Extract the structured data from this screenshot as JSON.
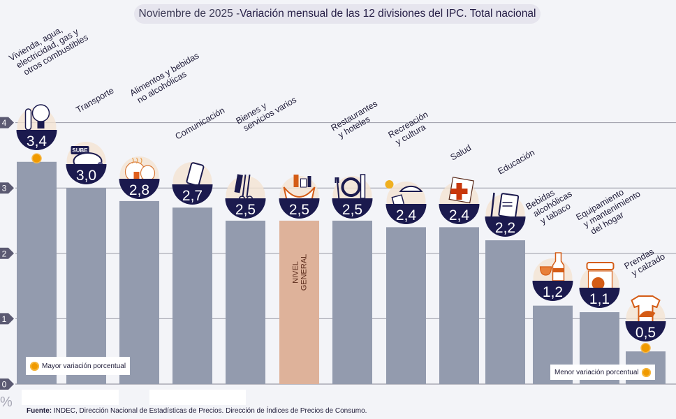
{
  "title": {
    "prefix": "Noviembre de 2025 - ",
    "main": "Variación mensual de las 12 divisiones del IPC. Total nacional"
  },
  "colors": {
    "bar": "#939bae",
    "general_bar": "#deb29a",
    "badge": "#1b1a4e",
    "highlight_dot": "#f09a00",
    "grid": "#9a9aa6",
    "axis_marker": "#5b5a72"
  },
  "chart_data": {
    "type": "bar",
    "title": "Noviembre de 2025 - Variación mensual de las 12 divisiones del IPC. Total nacional",
    "xlabel": "",
    "ylabel": "%",
    "ylim": [
      0,
      4
    ],
    "yticks": [
      "0",
      "1",
      "2",
      "3",
      "4"
    ],
    "grid": true,
    "categories": [
      "Vivienda, agua, electricidad, gas y otros combustibles",
      "Transporte",
      "Alimentos y bebidas no alcohólicas",
      "Comunicación",
      "Bienes y servicios varios",
      "NIVEL GENERAL",
      "Restaurantes y hoteles",
      "Recreación y cultura",
      "Salud",
      "Educación",
      "Bebidas alcohólicas y tabaco",
      "Equipamiento y mantenimiento del hogar",
      "Prendas y calzado"
    ],
    "values": [
      3.4,
      3.0,
      2.8,
      2.7,
      2.5,
      2.5,
      2.5,
      2.4,
      2.4,
      2.2,
      1.2,
      1.1,
      0.5
    ],
    "value_labels": [
      "3,4",
      "3,0",
      "2,8",
      "2,7",
      "2,5",
      "2,5",
      "2,5",
      "2,4",
      "2,4",
      "2,2",
      "1,2",
      "1,1",
      "0,5"
    ],
    "label_lines": [
      [
        "Vivienda, agua,",
        "electricidad, gas y",
        "otros combustibles"
      ],
      [
        "Transporte"
      ],
      [
        "Alimentos y bebidas",
        "no alcohólicas"
      ],
      [
        "Comunicación"
      ],
      [
        "Bienes y",
        "servicios varios"
      ],
      [],
      [
        "Restaurantes",
        "y hoteles"
      ],
      [
        "Recreación",
        "y cultura"
      ],
      [
        "Salud"
      ],
      [
        "Educación"
      ],
      [
        "Bebidas",
        "alcohólicas",
        "y tabaco"
      ],
      [
        "Equipamiento",
        "y mantenimiento",
        "del hogar"
      ],
      [
        "Prendas",
        "y calzado"
      ]
    ],
    "icons": [
      "key-and-lightbulb-icon",
      "sube-car-icon",
      "food-chicken-icon",
      "smartphone-icon",
      "comb-scissors-icon",
      "shopping-bag-icon",
      "plate-cutlery-icon",
      "beach-umbrella-icon",
      "medical-cross-icon",
      "notebook-pencil-icon",
      "wine-bottle-glass-icon",
      "washing-machine-ac-icon",
      "shirt-shoe-icon"
    ],
    "general_index": 5,
    "general_label_lines": [
      "NIVEL",
      "GENERAL"
    ],
    "max_index": 0,
    "min_index": 12,
    "legend": {
      "max": "Mayor variación porcentual",
      "min": "Menor variación porcentual"
    }
  },
  "footer": {
    "source_label": "Fuente:",
    "source_text": " INDEC, Dirección Nacional de Estadísticas de Precios. Dirección de Índices de Precios de Consumo."
  }
}
